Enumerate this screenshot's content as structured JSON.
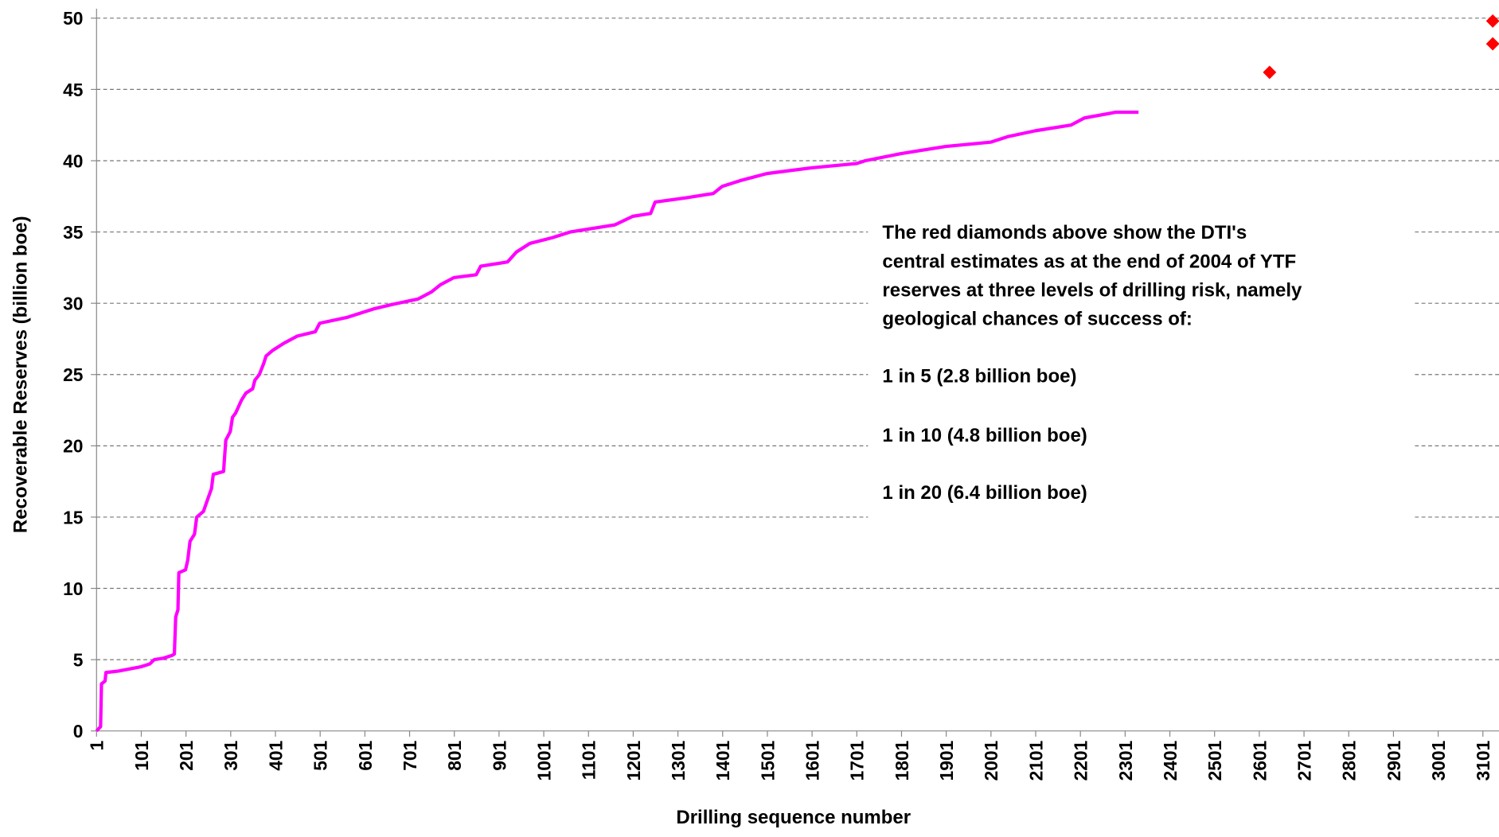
{
  "chart_data": {
    "type": "line",
    "xlabel": "Drilling sequence number",
    "ylabel": "Recoverable Reserves (billion boe)",
    "xlim": [
      1,
      3137
    ],
    "xticks": [
      1,
      101,
      201,
      301,
      401,
      501,
      601,
      701,
      801,
      901,
      1001,
      1101,
      1201,
      1301,
      1401,
      1501,
      1601,
      1701,
      1801,
      1901,
      2001,
      2101,
      2201,
      2301,
      2401,
      2501,
      2601,
      2701,
      2801,
      2901,
      3001,
      3101
    ],
    "ylim": [
      0,
      50
    ],
    "yticks": [
      0,
      5,
      10,
      15,
      20,
      25,
      30,
      35,
      40,
      45,
      50
    ],
    "grid": true,
    "series": [
      {
        "type": "line",
        "color": "#ff00ff",
        "x": [
          1,
          10,
          12,
          20,
          22,
          50,
          100,
          120,
          130,
          150,
          170,
          175,
          178,
          183,
          185,
          200,
          205,
          210,
          220,
          225,
          240,
          250,
          258,
          262,
          285,
          290,
          300,
          305,
          312,
          325,
          335,
          350,
          355,
          365,
          375,
          380,
          395,
          420,
          450,
          490,
          500,
          560,
          620,
          660,
          720,
          750,
          770,
          800,
          850,
          860,
          920,
          940,
          970,
          1020,
          1060,
          1120,
          1160,
          1200,
          1240,
          1250,
          1320,
          1380,
          1400,
          1440,
          1500,
          1600,
          1700,
          1720,
          1800,
          1900,
          2000,
          2040,
          2100,
          2180,
          2210,
          2280,
          2331
        ],
        "values": [
          0,
          0.3,
          3.3,
          3.5,
          4.1,
          4.2,
          4.5,
          4.7,
          5.0,
          5.1,
          5.3,
          5.4,
          8,
          8.5,
          11.1,
          11.3,
          12,
          13.3,
          13.8,
          15,
          15.4,
          16.3,
          17,
          18,
          18.2,
          20.4,
          21,
          22,
          22.3,
          23.2,
          23.7,
          24,
          24.6,
          25,
          25.8,
          26.3,
          26.7,
          27.2,
          27.7,
          28,
          28.6,
          29,
          29.6,
          29.9,
          30.3,
          30.8,
          31.3,
          31.8,
          32,
          32.6,
          32.9,
          33.6,
          34.2,
          34.6,
          35,
          35.3,
          35.5,
          36.1,
          36.3,
          37.1,
          37.4,
          37.7,
          38.2,
          38.6,
          39.1,
          39.5,
          39.8,
          40,
          40.5,
          41,
          41.3,
          41.7,
          42.1,
          42.5,
          43,
          43.4,
          43.4
        ]
      },
      {
        "type": "scatter",
        "color": "#ff0000",
        "marker": "diamond",
        "x": [
          2624,
          3123,
          3123
        ],
        "values": [
          46.2,
          48.2,
          49.8
        ]
      }
    ],
    "annotation": [
      "The red diamonds above show the DTI's",
      "central estimates as at the end of 2004 of YTF",
      "reserves at three levels of drilling risk, namely",
      "geological chances of success of:",
      "1 in 5 (2.8 billion boe)",
      "1 in 10 (4.8 billion boe)",
      "1 in 20 (6.4 billion boe)"
    ]
  }
}
